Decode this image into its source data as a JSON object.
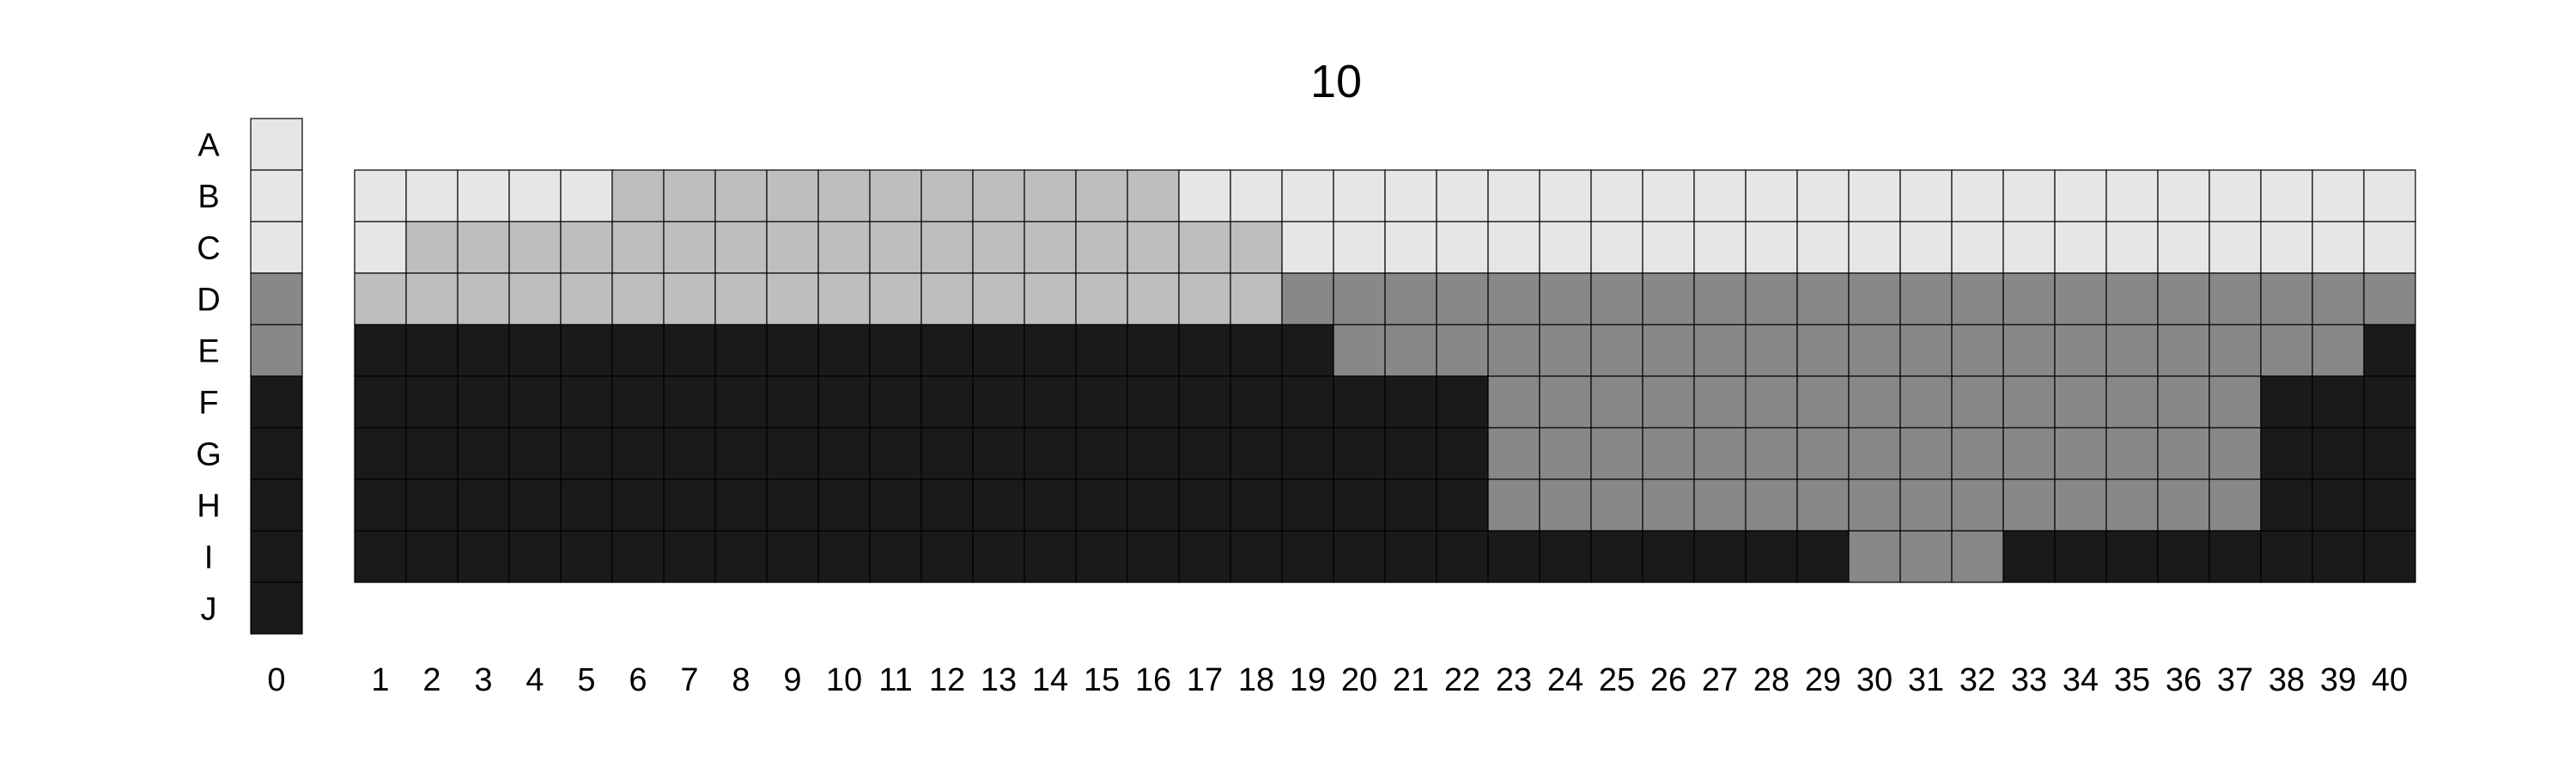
{
  "chart_data": {
    "type": "heatmap",
    "title": "10",
    "row_labels": [
      "A",
      "B",
      "C",
      "D",
      "E",
      "F",
      "G",
      "H",
      "I",
      "J"
    ],
    "key_column_label": "0",
    "column_labels": [
      "1",
      "2",
      "3",
      "4",
      "5",
      "6",
      "7",
      "8",
      "9",
      "10",
      "11",
      "12",
      "13",
      "14",
      "15",
      "16",
      "17",
      "18",
      "19",
      "20",
      "21",
      "22",
      "23",
      "24",
      "25",
      "26",
      "27",
      "28",
      "29",
      "30",
      "31",
      "32",
      "33",
      "34",
      "35",
      "36",
      "37",
      "38",
      "39",
      "40"
    ],
    "color_levels": {
      "1": "#e6e6e6",
      "2": "#bebebe",
      "3": "#888888",
      "4": "#1a1a1a"
    },
    "key_column": [
      1,
      1,
      1,
      3,
      3,
      4,
      4,
      4,
      4,
      4
    ],
    "grid_rows": [
      "B",
      "C",
      "D",
      "E",
      "F",
      "G",
      "H",
      "I"
    ],
    "grid": [
      [
        1,
        1,
        1,
        1,
        1,
        2,
        2,
        2,
        2,
        2,
        2,
        2,
        2,
        2,
        2,
        2,
        1,
        1,
        1,
        1,
        1,
        1,
        1,
        1,
        1,
        1,
        1,
        1,
        1,
        1,
        1,
        1,
        1,
        1,
        1,
        1,
        1,
        1,
        1,
        1
      ],
      [
        1,
        2,
        2,
        2,
        2,
        2,
        2,
        2,
        2,
        2,
        2,
        2,
        2,
        2,
        2,
        2,
        2,
        2,
        1,
        1,
        1,
        1,
        1,
        1,
        1,
        1,
        1,
        1,
        1,
        1,
        1,
        1,
        1,
        1,
        1,
        1,
        1,
        1,
        1,
        1
      ],
      [
        2,
        2,
        2,
        2,
        2,
        2,
        2,
        2,
        2,
        2,
        2,
        2,
        2,
        2,
        2,
        2,
        2,
        2,
        3,
        3,
        3,
        3,
        3,
        3,
        3,
        3,
        3,
        3,
        3,
        3,
        3,
        3,
        3,
        3,
        3,
        3,
        3,
        3,
        3,
        3
      ],
      [
        4,
        4,
        4,
        4,
        4,
        4,
        4,
        4,
        4,
        4,
        4,
        4,
        4,
        4,
        4,
        4,
        4,
        4,
        4,
        3,
        3,
        3,
        3,
        3,
        3,
        3,
        3,
        3,
        3,
        3,
        3,
        3,
        3,
        3,
        3,
        3,
        3,
        3,
        3,
        4
      ],
      [
        4,
        4,
        4,
        4,
        4,
        4,
        4,
        4,
        4,
        4,
        4,
        4,
        4,
        4,
        4,
        4,
        4,
        4,
        4,
        4,
        4,
        4,
        3,
        3,
        3,
        3,
        3,
        3,
        3,
        3,
        3,
        3,
        3,
        3,
        3,
        3,
        3,
        4,
        4,
        4
      ],
      [
        4,
        4,
        4,
        4,
        4,
        4,
        4,
        4,
        4,
        4,
        4,
        4,
        4,
        4,
        4,
        4,
        4,
        4,
        4,
        4,
        4,
        4,
        3,
        3,
        3,
        3,
        3,
        3,
        3,
        3,
        3,
        3,
        3,
        3,
        3,
        3,
        3,
        4,
        4,
        4
      ],
      [
        4,
        4,
        4,
        4,
        4,
        4,
        4,
        4,
        4,
        4,
        4,
        4,
        4,
        4,
        4,
        4,
        4,
        4,
        4,
        4,
        4,
        4,
        3,
        3,
        3,
        3,
        3,
        3,
        3,
        3,
        3,
        3,
        3,
        3,
        3,
        3,
        3,
        4,
        4,
        4
      ],
      [
        4,
        4,
        4,
        4,
        4,
        4,
        4,
        4,
        4,
        4,
        4,
        4,
        4,
        4,
        4,
        4,
        4,
        4,
        4,
        4,
        4,
        4,
        4,
        4,
        4,
        4,
        4,
        4,
        4,
        3,
        3,
        3,
        4,
        4,
        4,
        4,
        4,
        4,
        4,
        4
      ]
    ]
  }
}
